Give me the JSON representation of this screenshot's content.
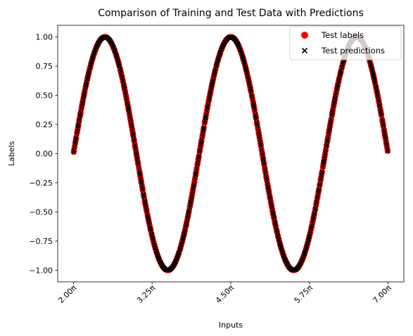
{
  "chart_data": {
    "type": "scatter",
    "title": "Comparison of Training and Test Data with Predictions",
    "xlabel": "Inputs",
    "ylabel": "Labels",
    "function": "sin(x)",
    "x_range_pi": [
      2.0,
      7.0
    ],
    "xlim_pi": [
      1.75,
      7.25
    ],
    "ylim": [
      -1.1,
      1.1
    ],
    "x_ticks": [
      {
        "value_pi": 2.0,
        "label": "2.00π"
      },
      {
        "value_pi": 3.25,
        "label": "3.25π"
      },
      {
        "value_pi": 4.5,
        "label": "4.50π"
      },
      {
        "value_pi": 5.75,
        "label": "5.75π"
      },
      {
        "value_pi": 7.0,
        "label": "7.00π"
      }
    ],
    "y_ticks": [
      {
        "value": 1.0,
        "label": "1.00"
      },
      {
        "value": 0.75,
        "label": "0.75"
      },
      {
        "value": 0.5,
        "label": "0.50"
      },
      {
        "value": 0.25,
        "label": "0.25"
      },
      {
        "value": 0.0,
        "label": "0.00"
      },
      {
        "value": -0.25,
        "label": "−0.25"
      },
      {
        "value": -0.5,
        "label": "−0.50"
      },
      {
        "value": -0.75,
        "label": "−0.75"
      },
      {
        "value": -1.0,
        "label": "−1.00"
      }
    ],
    "series": [
      {
        "name": "Test labels",
        "marker": "circle",
        "color": "#ff0000"
      },
      {
        "name": "Test predictions",
        "marker": "x",
        "color": "#000000"
      }
    ],
    "legend_position": "top-right",
    "grid": false
  }
}
